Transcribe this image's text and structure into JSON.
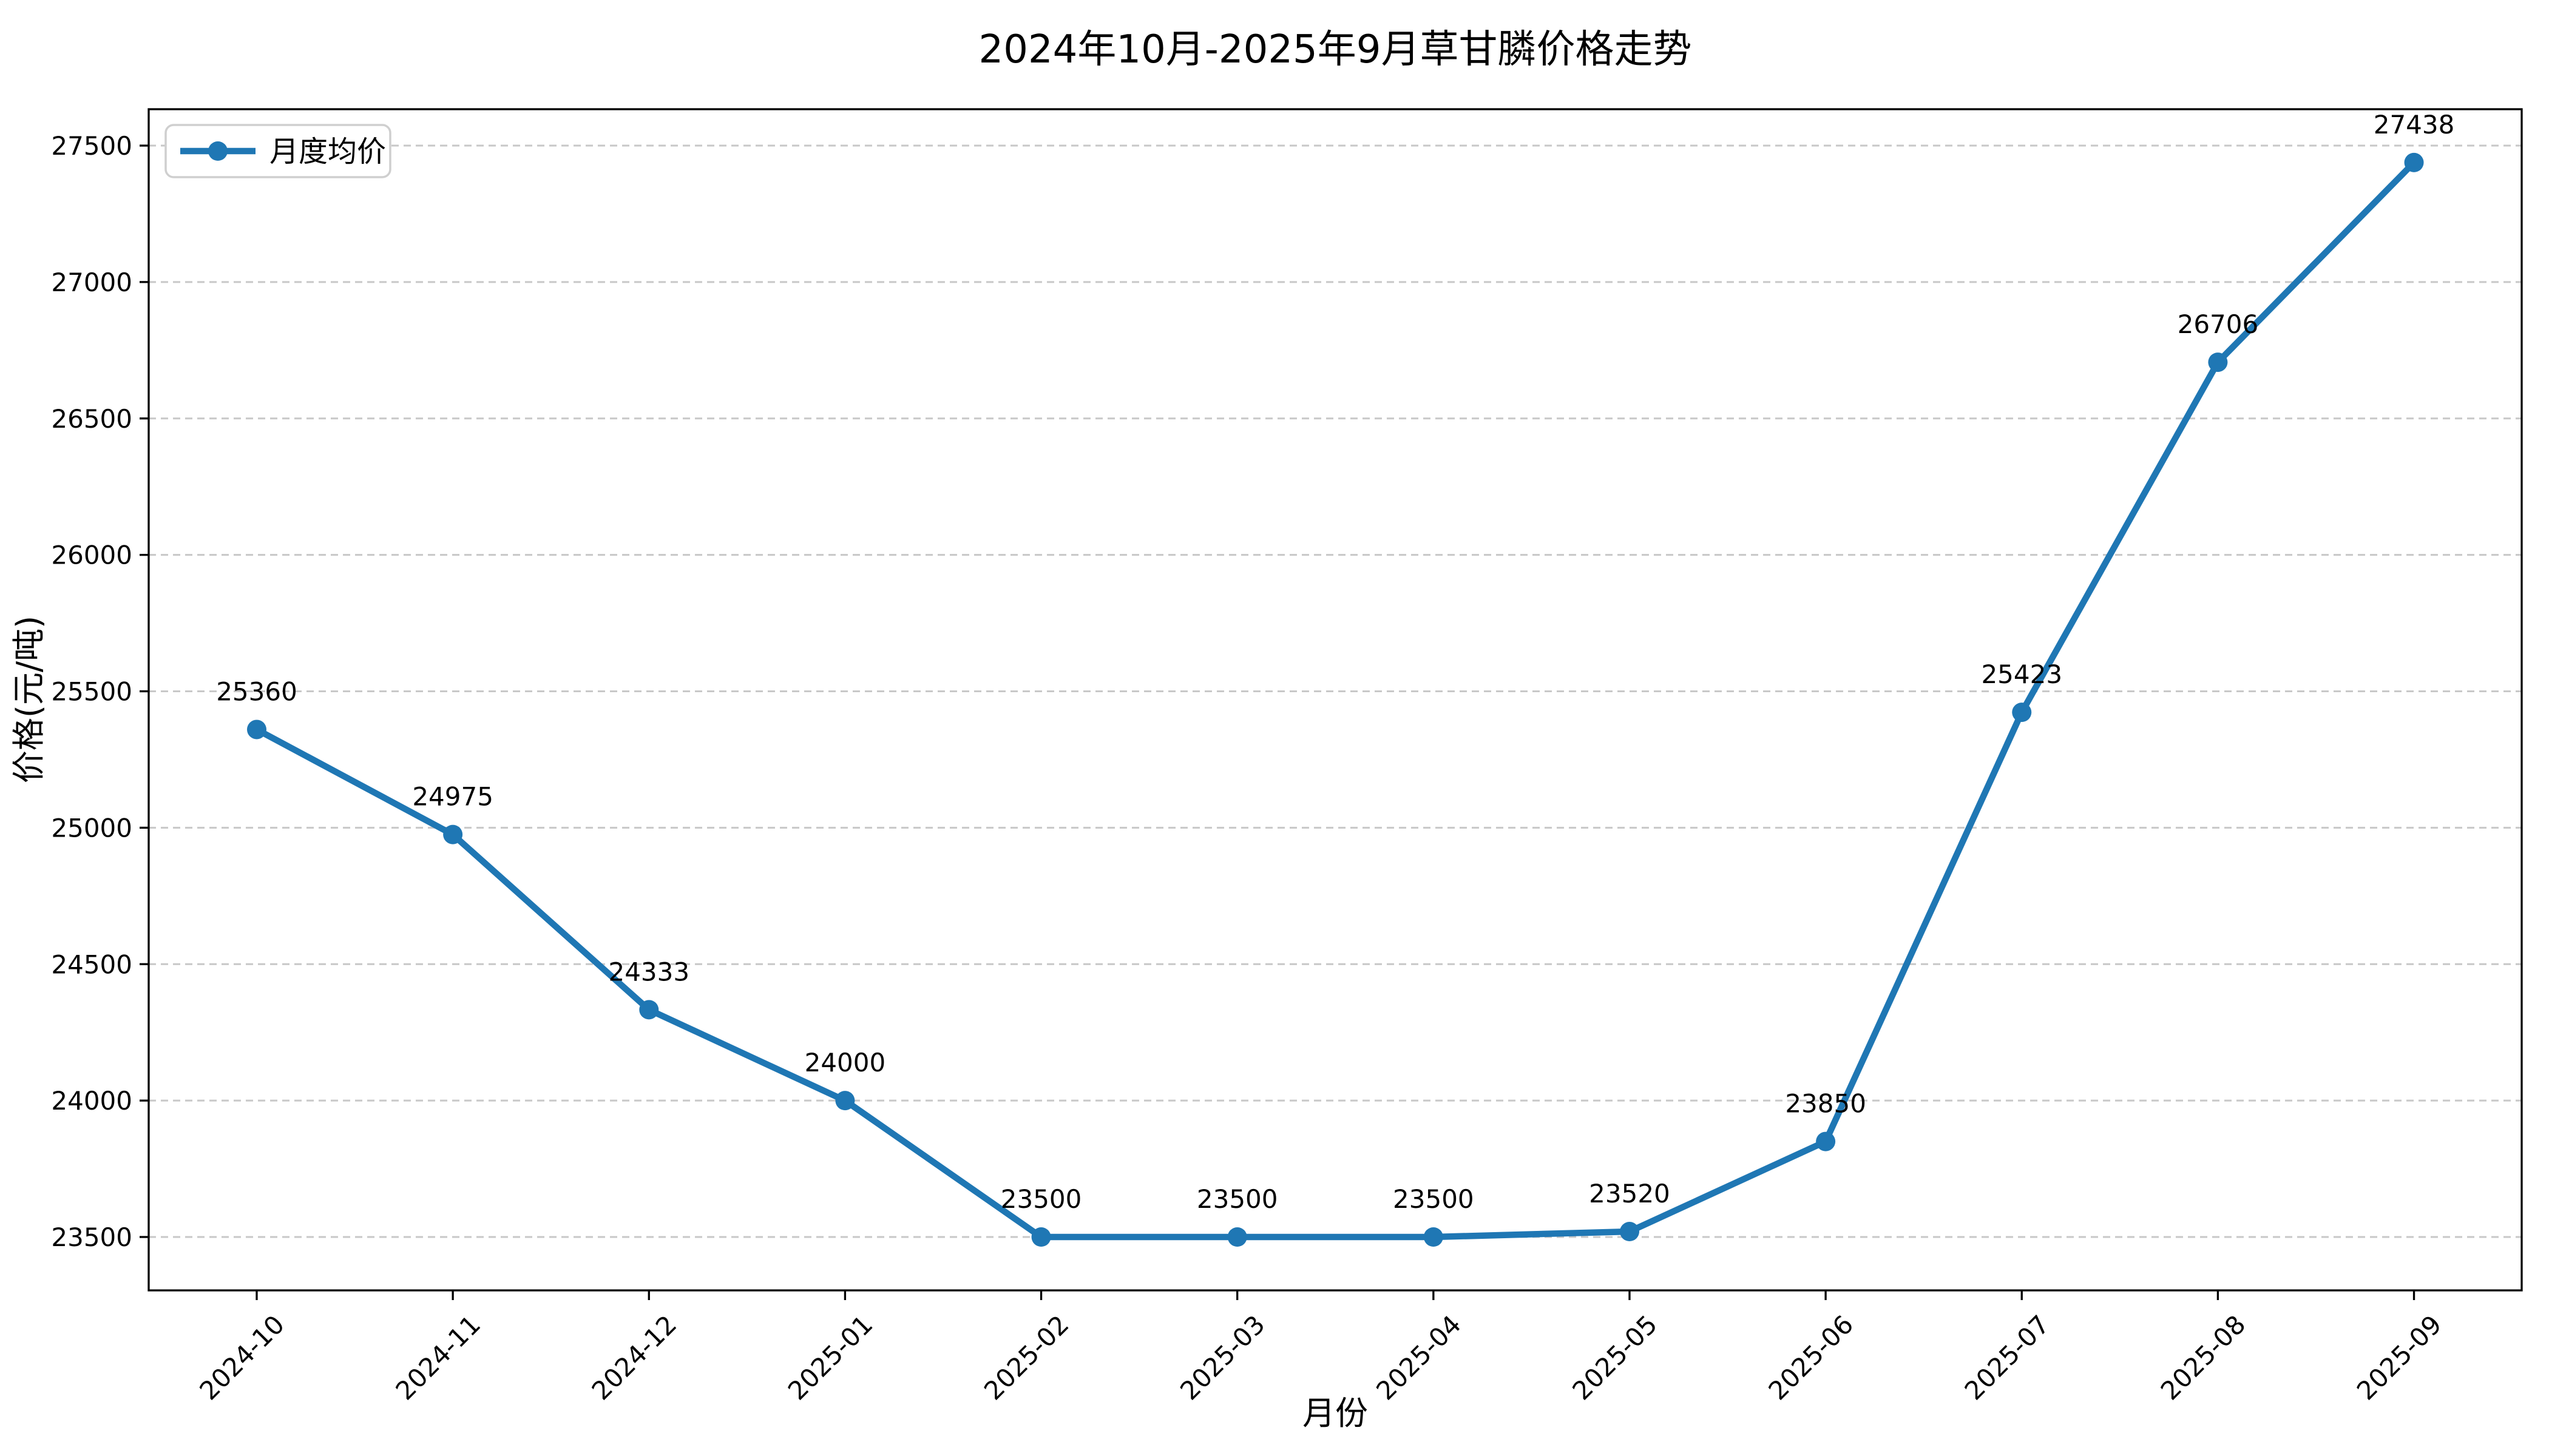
{
  "figure": {
    "background": "#ffffff"
  },
  "chart_data": {
    "type": "line",
    "title": "2024年10月-2025年9月草甘膦价格走势",
    "xlabel": "月份",
    "ylabel": "价格(元/吨)",
    "categories": [
      "2024-10",
      "2024-11",
      "2024-12",
      "2025-01",
      "2025-02",
      "2025-03",
      "2025-04",
      "2025-05",
      "2025-06",
      "2025-07",
      "2025-08",
      "2025-09"
    ],
    "series": [
      {
        "name": "月度均价",
        "color": "#1f77b4",
        "marker": "circle",
        "values": [
          25360,
          24975,
          24333,
          24000,
          23500,
          23500,
          23500,
          23520,
          23850,
          25423,
          26706,
          27438
        ]
      }
    ],
    "point_labels": [
      "25360",
      "24975",
      "24333",
      "24000",
      "23500",
      "23500",
      "23500",
      "23520",
      "23850",
      "25423",
      "26706",
      "27438"
    ],
    "show_point_labels": true,
    "yticks": [
      23500,
      24000,
      24500,
      25000,
      25500,
      26000,
      26500,
      27000,
      27500
    ],
    "ylim": [
      23300,
      27640
    ],
    "grid": true,
    "grid_style": "dashed",
    "grid_color": "#c8c8c8",
    "axis_color": "#000000",
    "legend": {
      "position": "upper-left",
      "entries": [
        "月度均价"
      ]
    }
  }
}
